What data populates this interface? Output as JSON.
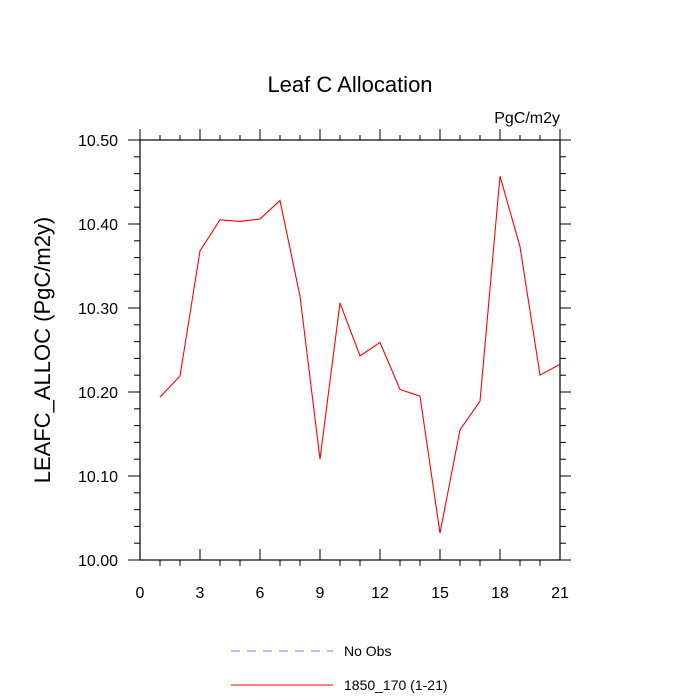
{
  "chart_data": {
    "type": "line",
    "title": "Leaf C Allocation",
    "units": "PgC/m2y",
    "ylabel": "LEAFC_ALLOC  (PgC/m2y)",
    "xlabel": "",
    "xlim": [
      0,
      21
    ],
    "ylim": [
      10.0,
      10.5
    ],
    "x_ticks": [
      0,
      3,
      6,
      9,
      12,
      15,
      18,
      21
    ],
    "x_tick_labels": [
      "0",
      "3",
      "6",
      "9",
      "12",
      "15",
      "18",
      "21"
    ],
    "y_ticks": [
      10.0,
      10.1,
      10.2,
      10.3,
      10.4,
      10.5
    ],
    "y_tick_labels": [
      "10.00",
      "10.10",
      "10.20",
      "10.30",
      "10.40",
      "10.50"
    ],
    "series": [
      {
        "name": "1850_170 (1-21)",
        "color": "#ff0000",
        "x": [
          1,
          2,
          3,
          4,
          5,
          6,
          7,
          8,
          9,
          10,
          11,
          12,
          13,
          14,
          15,
          16,
          17,
          18,
          19,
          20,
          21
        ],
        "values": [
          10.194,
          10.219,
          10.368,
          10.405,
          10.403,
          10.406,
          10.428,
          10.314,
          10.12,
          10.306,
          10.243,
          10.259,
          10.203,
          10.195,
          10.032,
          10.155,
          10.189,
          10.457,
          10.373,
          10.22,
          10.233
        ]
      }
    ],
    "legend": [
      {
        "label": "No Obs",
        "style": "dashed",
        "color": "#7b7bff"
      },
      {
        "label": "1850_170 (1-21)",
        "style": "solid",
        "color": "#ff0000"
      }
    ],
    "legend_position": "bottom-center"
  }
}
